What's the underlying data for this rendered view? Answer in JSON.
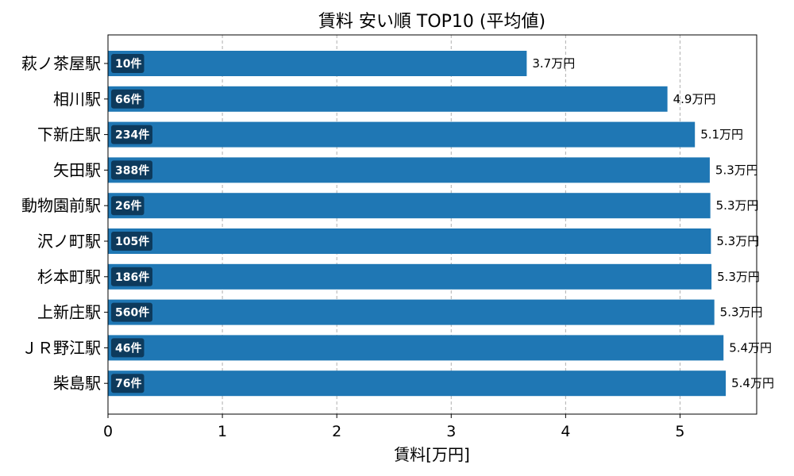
{
  "chart_data": {
    "type": "bar",
    "orientation": "horizontal",
    "title": "賃料 安い順 TOP10 (平均値)",
    "xlabel": "賃料[万円]",
    "ylabel": "",
    "xlim": [
      0,
      5.67
    ],
    "xticks": [
      0,
      1,
      2,
      3,
      4,
      5
    ],
    "grid": "x-dashed",
    "bar_color": "#1f77b4",
    "badge_color": "#0d3a5c",
    "categories": [
      "萩ノ茶屋駅",
      "相川駅",
      "下新庄駅",
      "矢田駅",
      "動物園前駅",
      "沢ノ町駅",
      "杉本町駅",
      "上新庄駅",
      "ＪＲ野江駅",
      "柴島駅"
    ],
    "values": [
      3.66,
      4.89,
      5.13,
      5.26,
      5.265,
      5.27,
      5.275,
      5.3,
      5.38,
      5.4
    ],
    "value_labels": [
      "3.7万円",
      "4.9万円",
      "5.1万円",
      "5.3万円",
      "5.3万円",
      "5.3万円",
      "5.3万円",
      "5.3万円",
      "5.4万円",
      "5.4万円"
    ],
    "count_labels": [
      "10件",
      "66件",
      "234件",
      "388件",
      "26件",
      "105件",
      "186件",
      "560件",
      "46件",
      "76件"
    ]
  }
}
